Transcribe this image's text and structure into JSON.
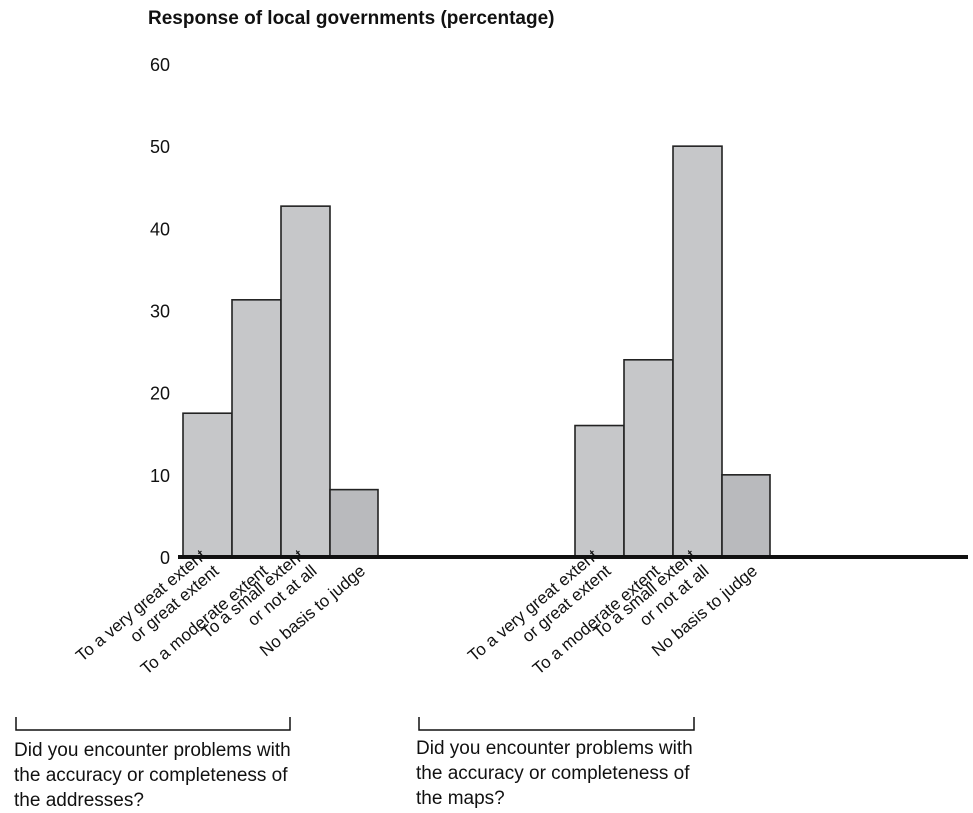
{
  "chart_data": {
    "type": "bar",
    "ylabel": "Response of local governments (percentage)",
    "ylim": [
      0,
      60
    ],
    "yticks": [
      0,
      10,
      20,
      30,
      40,
      50,
      60
    ],
    "categories": [
      "To a very great extent\nor great extent",
      "To a moderate extent",
      "To a small extent\nor not at all",
      "No basis to judge"
    ],
    "groups": [
      {
        "caption": "Did you encounter problems with\nthe accuracy or completeness of\nthe addresses?",
        "values": [
          17.5,
          31.3,
          42.7,
          8.2
        ]
      },
      {
        "caption": "Did you encounter problems with\nthe accuracy or completeness of\nthe maps?",
        "values": [
          16.0,
          24.0,
          50.0,
          10.0
        ]
      }
    ],
    "grid": false,
    "colors": {
      "bar": "#c6c7c9",
      "bar_last": "#b9babd",
      "stroke": "#222222",
      "axis": "#111111"
    }
  }
}
